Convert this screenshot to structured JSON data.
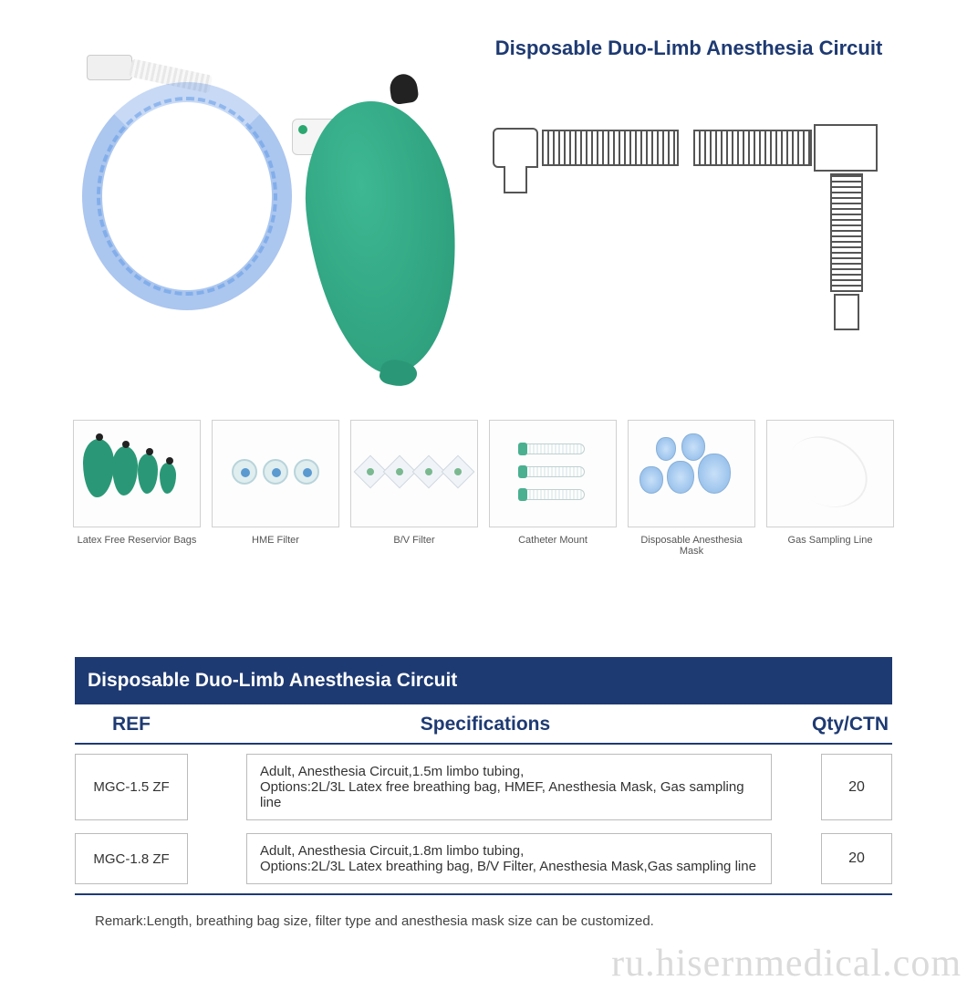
{
  "title": "Disposable Duo-Limb Anesthesia Circuit",
  "thumbnails": [
    {
      "label": "Latex Free Reservior Bags"
    },
    {
      "label": "HME Filter"
    },
    {
      "label": "B/V Filter"
    },
    {
      "label": "Catheter Mount"
    },
    {
      "label": "Disposable Anesthesia Mask"
    },
    {
      "label": "Gas Sampling Line"
    }
  ],
  "spec": {
    "banner": "Disposable Duo-Limb Anesthesia Circuit",
    "headers": {
      "ref": "REF",
      "spec": "Specifications",
      "qty": "Qty/CTN"
    },
    "rows": [
      {
        "ref": "MGC-1.5 ZF",
        "line1": "Adult, Anesthesia Circuit,1.5m limbo tubing,",
        "line2": "Options:2L/3L Latex free breathing bag, HMEF, Anesthesia Mask, Gas sampling line",
        "qty": "20"
      },
      {
        "ref": "MGC-1.8 ZF",
        "line1": "Adult, Anesthesia Circuit,1.8m limbo tubing,",
        "line2": "Options:2L/3L Latex breathing bag, B/V Filter, Anesthesia Mask,Gas sampling line",
        "qty": "20"
      }
    ],
    "remark": "Remark:Length, breathing bag size, filter type and anesthesia mask size can be customized."
  },
  "watermark": "ru.hisernmedical.com",
  "colors": {
    "brand_blue": "#1e3a72",
    "bag_green": "#2a9876",
    "tubing_blue": "#5a9ad0",
    "border_gray": "#bbbbbb"
  }
}
